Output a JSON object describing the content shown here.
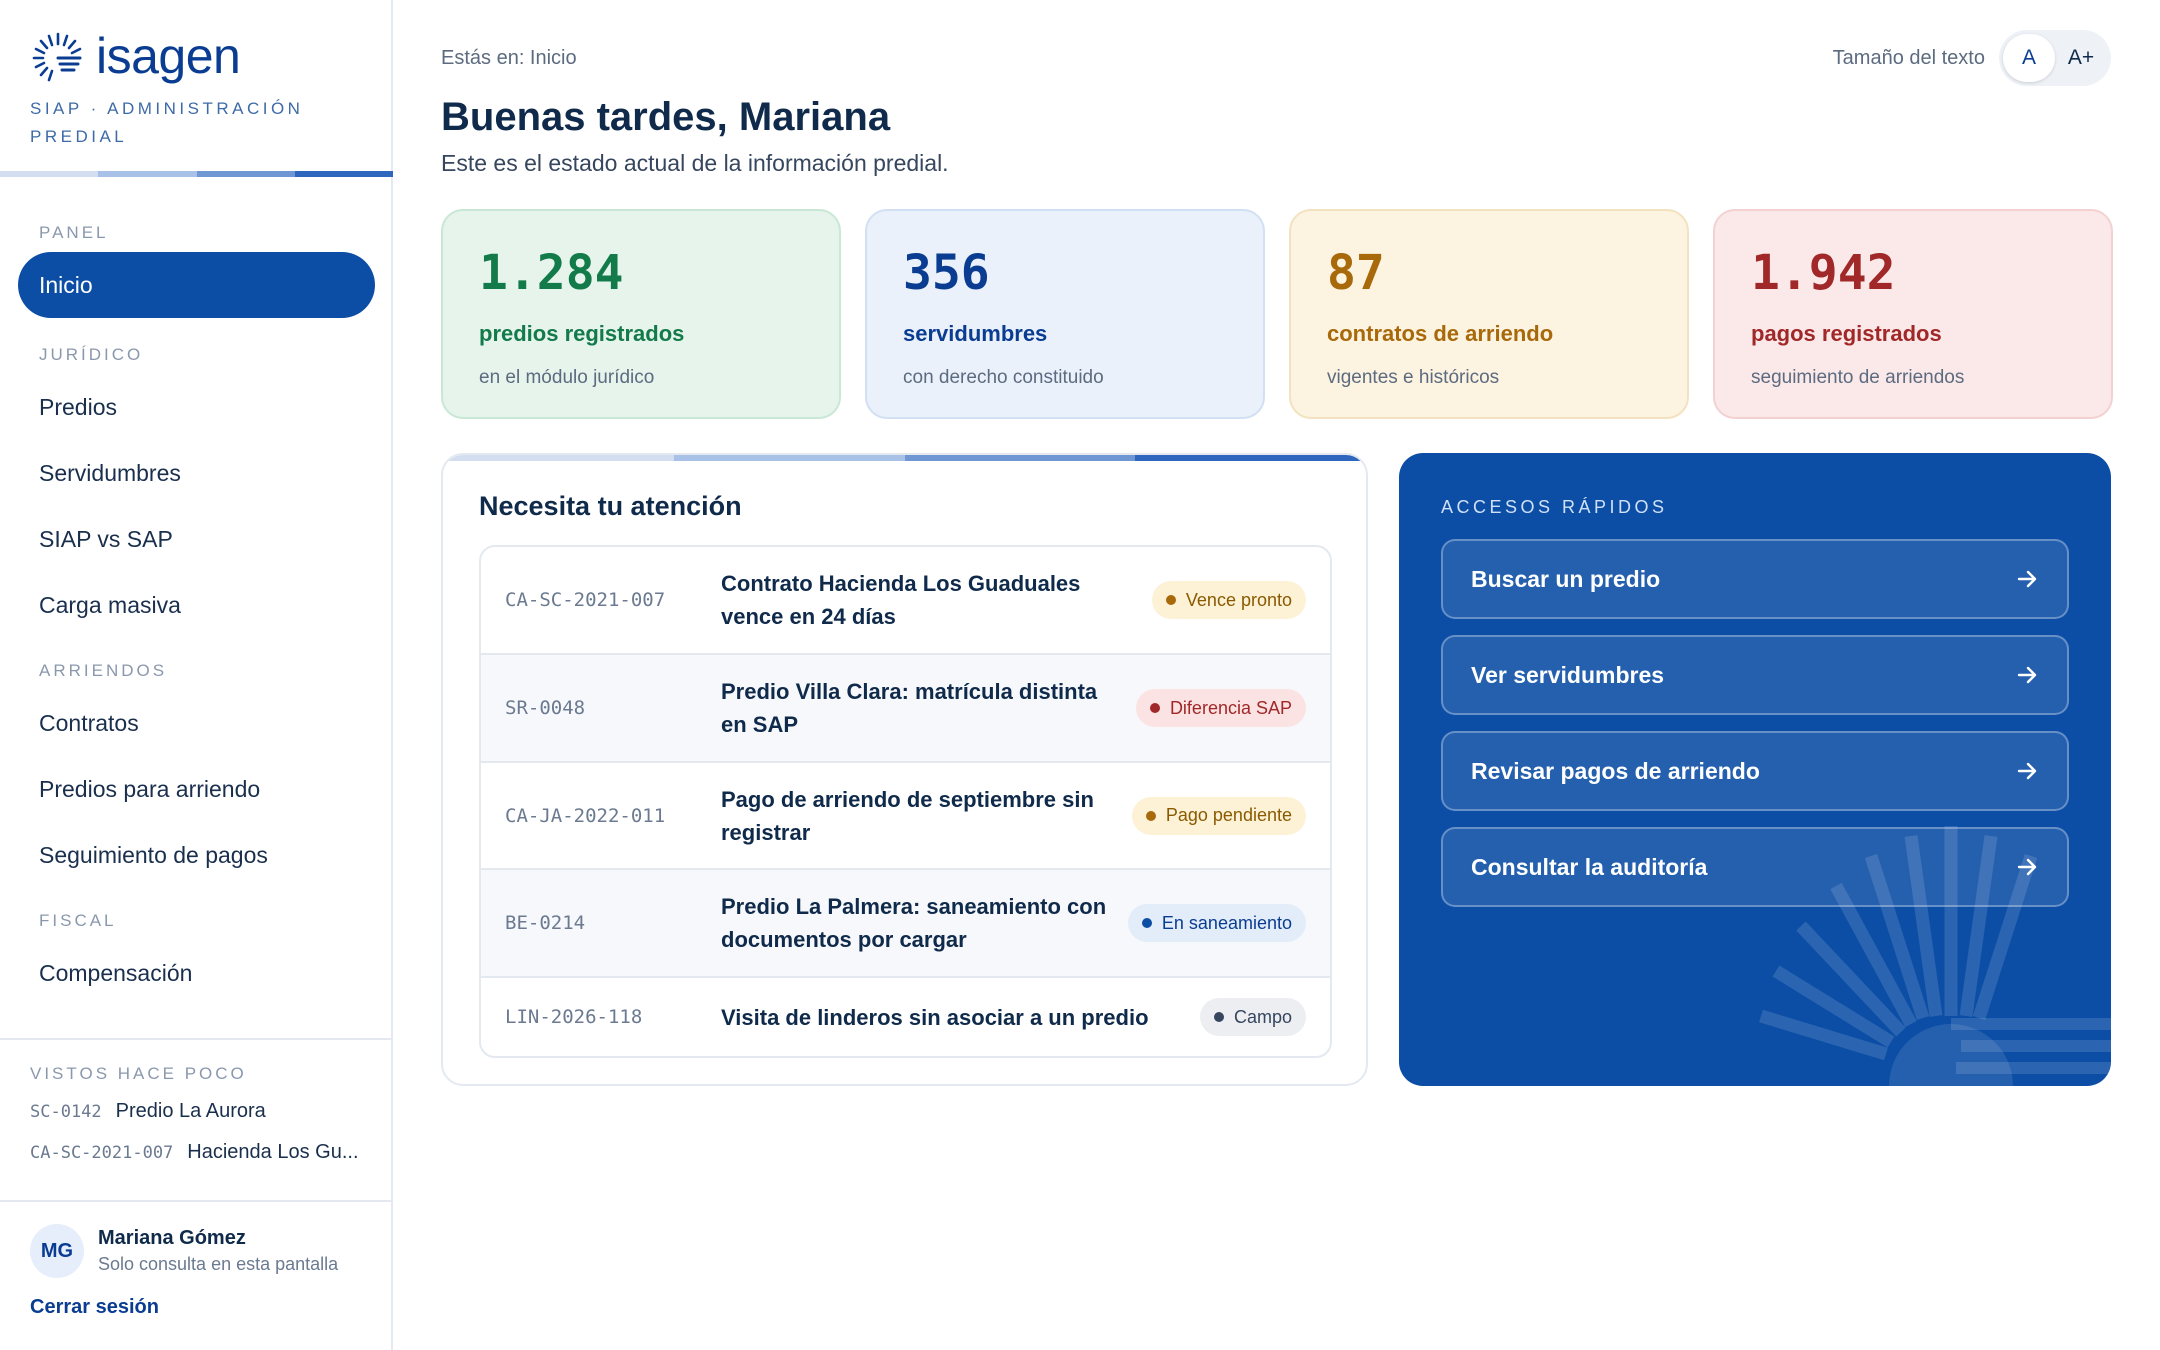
{
  "brand": {
    "name": "isagen",
    "subtitle": "SIAP · ADMINISTRACIÓN PREDIAL",
    "accent": "#0c4ea5"
  },
  "nav": {
    "sections": [
      {
        "title": "PANEL",
        "items": [
          {
            "label": "Inicio",
            "active": true
          }
        ]
      },
      {
        "title": "JURÍDICO",
        "items": [
          {
            "label": "Predios"
          },
          {
            "label": "Servidumbres"
          },
          {
            "label": "SIAP vs SAP"
          },
          {
            "label": "Carga masiva"
          }
        ]
      },
      {
        "title": "ARRIENDOS",
        "items": [
          {
            "label": "Contratos"
          },
          {
            "label": "Predios para arriendo"
          },
          {
            "label": "Seguimiento de pagos"
          }
        ]
      },
      {
        "title": "FISCAL",
        "items": [
          {
            "label": "Compensación"
          }
        ]
      }
    ]
  },
  "recent": {
    "title": "VISTOS HACE POCO",
    "items": [
      {
        "code": "SC-0142",
        "name": "Predio La Aurora"
      },
      {
        "code": "CA-SC-2021-007",
        "name": "Hacienda Los Gu..."
      }
    ]
  },
  "user": {
    "initials": "MG",
    "name": "Mariana Gómez",
    "role": "Solo consulta en esta pantalla",
    "logout": "Cerrar sesión"
  },
  "header": {
    "breadcrumb": "Estás en: Inicio",
    "textsize_label": "Tamaño del texto",
    "textsize_normal": "A",
    "textsize_large": "A+",
    "greeting": "Buenas tardes, Mariana",
    "intro": "Este es el estado actual de la información predial."
  },
  "stats": [
    {
      "value": "1.284",
      "label": "predios registrados",
      "sub": "en el módulo jurídico",
      "color": "#137a4a",
      "bg": "#e6f4ec",
      "border": "#c9e7d5"
    },
    {
      "value": "356",
      "label": "servidumbres",
      "sub": "con derecho constituido",
      "color": "#0a3d91",
      "bg": "#eaf1fa",
      "border": "#d2e0f3"
    },
    {
      "value": "87",
      "label": "contratos de arriendo",
      "sub": "vigentes e históricos",
      "color": "#a8690b",
      "bg": "#fdf3e1",
      "border": "#f3e2c0"
    },
    {
      "value": "1.942",
      "label": "pagos registrados",
      "sub": "seguimiento de arriendos",
      "color": "#a12828",
      "bg": "#fbe9e9",
      "border": "#f3d1d1"
    }
  ],
  "attention": {
    "title": "Necesita tu atención",
    "rows": [
      {
        "code": "CA-SC-2021-007",
        "text": "Contrato Hacienda Los Guaduales vence en 24 días",
        "badge": "Vence pronto",
        "badge_bg": "#fdf1d6",
        "badge_fg": "#8a5a00",
        "dot": "#a8690b"
      },
      {
        "code": "SR-0048",
        "text": "Predio Villa Clara: matrícula distinta en SAP",
        "badge": "Diferencia SAP",
        "badge_bg": "#fbe3e3",
        "badge_fg": "#a12828",
        "dot": "#a12828"
      },
      {
        "code": "CA-JA-2022-011",
        "text": "Pago de arriendo de septiembre sin registrar",
        "badge": "Pago pendiente",
        "badge_bg": "#fdf1d6",
        "badge_fg": "#8a5a00",
        "dot": "#a8690b"
      },
      {
        "code": "BE-0214",
        "text": "Predio La Palmera: saneamiento con documentos por cargar",
        "badge": "En saneamiento",
        "badge_bg": "#e3edfa",
        "badge_fg": "#0a3d91",
        "dot": "#0c4ea5"
      },
      {
        "code": "LIN-2026-118",
        "text": "Visita de linderos sin asociar a un predio",
        "badge": "Campo",
        "badge_bg": "#eceef2",
        "badge_fg": "#36465e",
        "dot": "#36465e"
      }
    ]
  },
  "quick": {
    "title": "ACCESOS RÁPIDOS",
    "links": [
      {
        "label": "Buscar un predio",
        "icon": "arrow-right-icon"
      },
      {
        "label": "Ver servidumbres",
        "icon": "arrow-right-icon"
      },
      {
        "label": "Revisar pagos de arriendo",
        "icon": "arrow-right-icon"
      },
      {
        "label": "Consultar la auditoría",
        "icon": "arrow-right-icon"
      }
    ]
  }
}
